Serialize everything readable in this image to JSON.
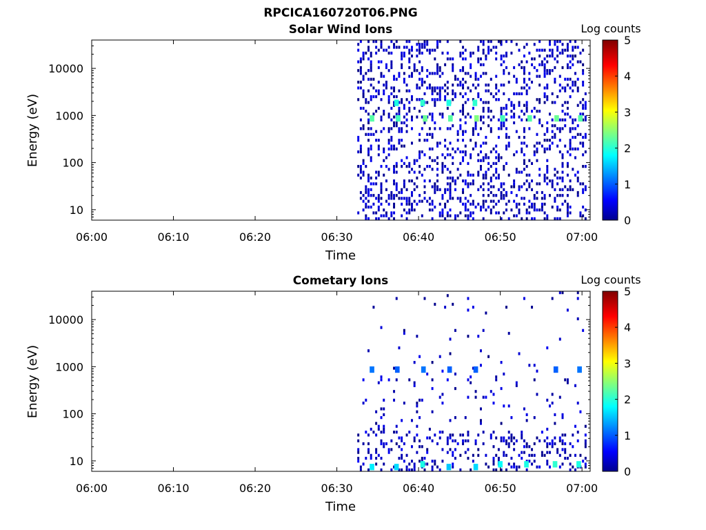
{
  "figure": {
    "title": "RPCICA160720T06.PNG"
  },
  "chart_data": [
    {
      "type": "heatmap",
      "title": "Solar Wind Ions",
      "xlabel": "Time",
      "ylabel": "Energy (eV)",
      "x_ticks": [
        "06:00",
        "06:10",
        "06:20",
        "06:30",
        "06:40",
        "06:50",
        "07:00"
      ],
      "x_tick_minutes": [
        0,
        10,
        20,
        30,
        40,
        50,
        60
      ],
      "xlim_minutes": [
        0,
        61
      ],
      "y_scale": "log",
      "y_ticks": [
        "10",
        "100",
        "1000",
        "10000"
      ],
      "y_tick_values": [
        10,
        100,
        1000,
        10000
      ],
      "ylim": [
        6,
        40000
      ],
      "data_start_minute": 32.5,
      "colorbar": {
        "label": "Log counts",
        "range": [
          0,
          5
        ],
        "ticks": [
          "0",
          "1",
          "2",
          "3",
          "4",
          "5"
        ],
        "colormap": "jet"
      },
      "bright_spots": [
        {
          "minute": 34.3,
          "energy": 820,
          "log_counts": 2.3
        },
        {
          "minute": 37.5,
          "energy": 820,
          "log_counts": 2.2
        },
        {
          "minute": 37.3,
          "energy": 1750,
          "log_counts": 2.0
        },
        {
          "minute": 40.8,
          "energy": 820,
          "log_counts": 2.4
        },
        {
          "minute": 40.5,
          "energy": 1750,
          "log_counts": 2.1
        },
        {
          "minute": 43.9,
          "energy": 820,
          "log_counts": 2.3
        },
        {
          "minute": 43.7,
          "energy": 1750,
          "log_counts": 2.0
        },
        {
          "minute": 47.1,
          "energy": 820,
          "log_counts": 2.5
        },
        {
          "minute": 46.9,
          "energy": 1750,
          "log_counts": 2.1
        },
        {
          "minute": 50.3,
          "energy": 820,
          "log_counts": 2.2
        },
        {
          "minute": 53.6,
          "energy": 820,
          "log_counts": 2.3
        },
        {
          "minute": 56.9,
          "energy": 820,
          "log_counts": 2.4
        },
        {
          "minute": 59.8,
          "energy": 820,
          "log_counts": 2.3
        }
      ],
      "scatter_range_energy": [
        6,
        35000
      ],
      "typical_log_counts": [
        0,
        1
      ]
    },
    {
      "type": "heatmap",
      "title": "Cometary Ions",
      "xlabel": "Time",
      "ylabel": "Energy (eV)",
      "x_ticks": [
        "06:00",
        "06:10",
        "06:20",
        "06:30",
        "06:40",
        "06:50",
        "07:00"
      ],
      "x_tick_minutes": [
        0,
        10,
        20,
        30,
        40,
        50,
        60
      ],
      "xlim_minutes": [
        0,
        61
      ],
      "y_scale": "log",
      "y_ticks": [
        "10",
        "100",
        "1000",
        "10000"
      ],
      "y_tick_values": [
        10,
        100,
        1000,
        10000
      ],
      "ylim": [
        6,
        40000
      ],
      "data_start_minute": 32.5,
      "colorbar": {
        "label": "Log counts",
        "range": [
          0,
          5
        ],
        "ticks": [
          "0",
          "1",
          "2",
          "3",
          "4",
          "5"
        ],
        "colormap": "jet"
      },
      "bright_spots": [
        {
          "minute": 34.3,
          "energy": 7,
          "log_counts": 1.8
        },
        {
          "minute": 37.3,
          "energy": 7,
          "log_counts": 1.7
        },
        {
          "minute": 40.5,
          "energy": 8,
          "log_counts": 2.0
        },
        {
          "minute": 43.7,
          "energy": 7,
          "log_counts": 1.6
        },
        {
          "minute": 47.0,
          "energy": 7,
          "log_counts": 1.7
        },
        {
          "minute": 50.0,
          "energy": 8,
          "log_counts": 1.9
        },
        {
          "minute": 53.2,
          "energy": 8,
          "log_counts": 2.0
        },
        {
          "minute": 56.7,
          "energy": 8,
          "log_counts": 2.1
        },
        {
          "minute": 59.6,
          "energy": 8,
          "log_counts": 2.0
        },
        {
          "minute": 34.3,
          "energy": 820,
          "log_counts": 1.2
        },
        {
          "minute": 37.4,
          "energy": 820,
          "log_counts": 1.1
        },
        {
          "minute": 40.6,
          "energy": 820,
          "log_counts": 1.2
        },
        {
          "minute": 43.8,
          "energy": 820,
          "log_counts": 1.1
        },
        {
          "minute": 47.0,
          "energy": 820,
          "log_counts": 1.1
        },
        {
          "minute": 56.8,
          "energy": 820,
          "log_counts": 1.1
        },
        {
          "minute": 59.7,
          "energy": 820,
          "log_counts": 1.2
        }
      ],
      "scatter_range_energy": [
        6,
        35000
      ],
      "typical_log_counts": [
        0,
        1
      ]
    }
  ]
}
